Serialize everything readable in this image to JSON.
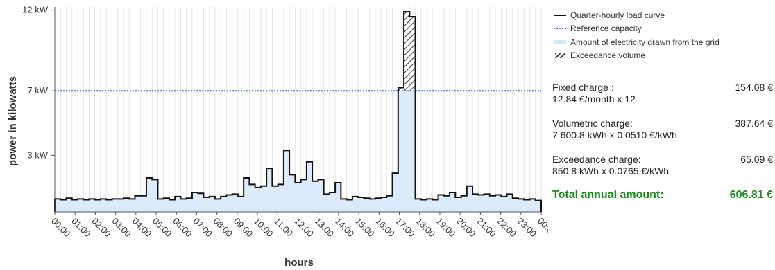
{
  "chart_data": {
    "type": "step",
    "ylabel": "power in kilowatts",
    "xlabel": "hours",
    "y_ticks": [
      {
        "value": 3,
        "label": "3 kW"
      },
      {
        "value": 7,
        "label": "7 kW"
      },
      {
        "value": 12,
        "label": "12 kW"
      }
    ],
    "ylim": [
      -0.5,
      12.2
    ],
    "x_tick_labels": [
      "00:00",
      "01:00",
      "02:00",
      "03:00",
      "04:00",
      "05:00",
      "06:00",
      "07:00",
      "08:00",
      "09:00",
      "10:00",
      "11:00",
      "12:00",
      "13:00",
      "14:00",
      "15:00",
      "16:00",
      "17:00",
      "18:00",
      "19:00",
      "20:00",
      "21:00",
      "22:00",
      "23:00",
      "00:00"
    ],
    "grid_x": true,
    "reference_capacity": 7,
    "load_curve": [
      0.3,
      0.25,
      0.35,
      0.25,
      0.3,
      0.25,
      0.3,
      0.25,
      0.3,
      0.25,
      0.3,
      0.3,
      0.35,
      0.3,
      0.5,
      0.5,
      1.6,
      1.5,
      0.3,
      0.35,
      0.25,
      0.45,
      0.3,
      0.35,
      0.7,
      0.65,
      0.4,
      0.45,
      0.3,
      0.45,
      0.55,
      0.6,
      0.45,
      1.6,
      1.2,
      1.0,
      1.1,
      2.2,
      1.1,
      1.2,
      3.3,
      1.8,
      1.3,
      1.5,
      2.6,
      1.4,
      1.5,
      0.6,
      0.7,
      1.3,
      0.3,
      0.25,
      0.45,
      0.4,
      0.35,
      0.3,
      0.35,
      0.4,
      0.5,
      1.9,
      7.2,
      11.9,
      11.6,
      0.3,
      0.25,
      0.3,
      0.25,
      0.55,
      0.5,
      0.7,
      0.4,
      0.5,
      1.1,
      0.6,
      0.55,
      0.6,
      0.5,
      0.55,
      0.45,
      0.6,
      0.35,
      0.3,
      0.25,
      0.3,
      0.2
    ],
    "legend": [
      "Quarter-hourly load curve",
      "Reference capacity",
      "Amount of electricity drawn from the grid",
      "Exceedance volume"
    ]
  },
  "costs": [
    {
      "title": "Fixed charge :",
      "amount": "154.08 €",
      "detail": "12.84 €/month x 12"
    },
    {
      "title": "Volumetric charge:",
      "amount": "387.64 €",
      "detail": "7 600.8 kWh x 0.0510 €/kWh"
    },
    {
      "title": "Exceedance charge:",
      "amount": "65.09 €",
      "detail": "850.8 kWh x 0.0765 €/kWh"
    }
  ],
  "total": {
    "label": "Total annual amount:",
    "amount": "606.81 €"
  }
}
